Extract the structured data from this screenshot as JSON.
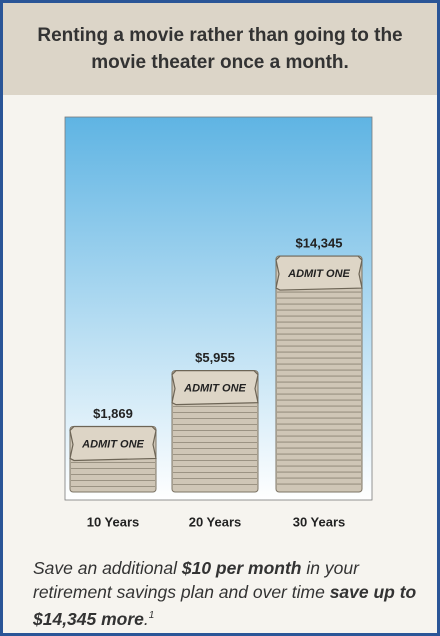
{
  "chart_data": {
    "type": "bar",
    "title": "Renting a movie rather than going to the movie theater once a month.",
    "categories": [
      "10 Years",
      "20 Years",
      "30 Years"
    ],
    "values": [
      1869,
      5955,
      14345
    ],
    "value_labels": [
      "$1,869",
      "$5,955",
      "$14,345"
    ],
    "ticket_label": "ADMIT ONE",
    "color": "#cfc6b6",
    "caption": [
      "Save an additional",
      "$10 per month",
      "in your retirement savings plan and over time",
      "save up to $14,345 more",
      ".",
      "1"
    ]
  }
}
